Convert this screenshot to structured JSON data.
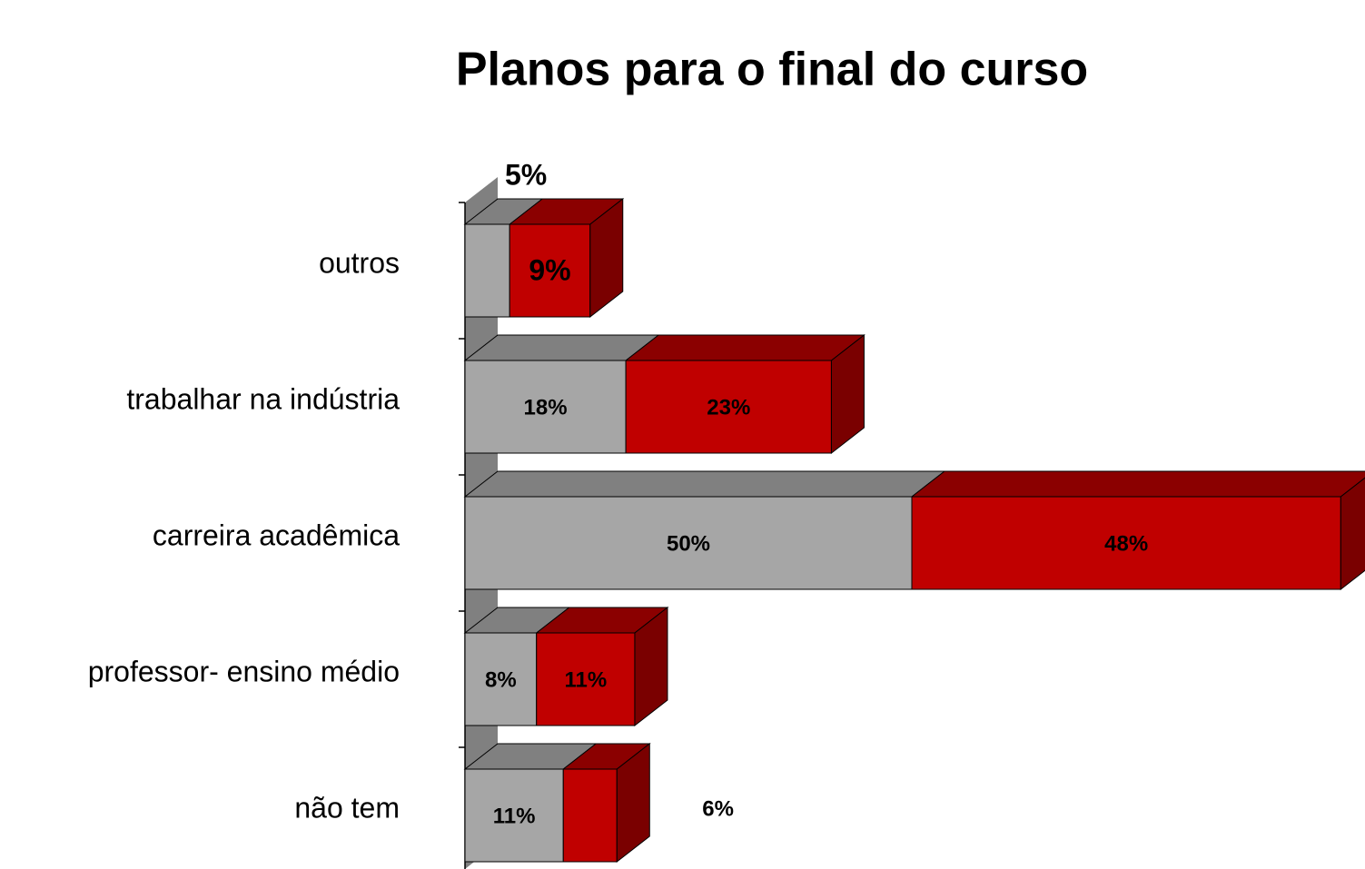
{
  "chart_data": {
    "type": "bar3d_stacked_horizontal",
    "title": "Planos para o final do curso",
    "categories": [
      "outros",
      "trabalhar na indústria",
      "carreira acadêmica",
      "professor- ensino médio",
      "não tem"
    ],
    "series": [
      {
        "color": "#a6a6a6",
        "values": [
          5,
          18,
          50,
          8,
          11
        ],
        "value_labels": [
          "5%",
          "18%",
          "50%",
          "8%",
          "11%"
        ]
      },
      {
        "color": "#c00000",
        "values": [
          9,
          23,
          48,
          11,
          6
        ],
        "value_labels": [
          "9%",
          "23%",
          "48%",
          "11%",
          "6%"
        ]
      }
    ]
  }
}
